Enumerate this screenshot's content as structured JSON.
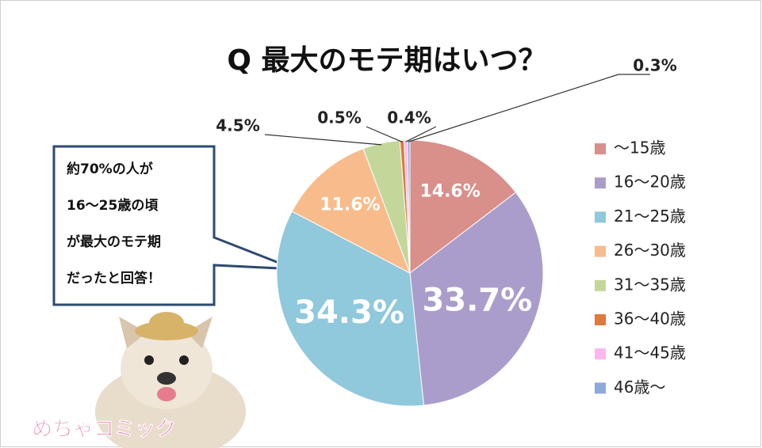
{
  "chart_data": {
    "type": "pie",
    "title": "Q 最大のモテ期はいつ？",
    "categories": [
      "～15歳",
      "16～20歳",
      "21～25歳",
      "26～30歳",
      "31～35歳",
      "36～40歳",
      "41～45歳",
      "46歳～"
    ],
    "values": [
      14.6,
      33.7,
      34.3,
      11.6,
      4.5,
      0.5,
      0.4,
      0.3
    ],
    "value_labels": [
      "14.6%",
      "33.7%",
      "34.3%",
      "11.6%",
      "4.5%",
      "0.5%",
      "0.4%",
      "0.3%"
    ],
    "colors": [
      "#d98f8a",
      "#ab9dcb",
      "#90c8dc",
      "#f8bc8c",
      "#c3d79b",
      "#e0793a",
      "#fdb6ef",
      "#8eaadb"
    ],
    "legend": "right",
    "annotation": [
      "約70%の人が",
      "16～25歳の頃",
      "が最大のモテ期",
      "だったと回答！"
    ],
    "logo": "めちゃコミック"
  }
}
